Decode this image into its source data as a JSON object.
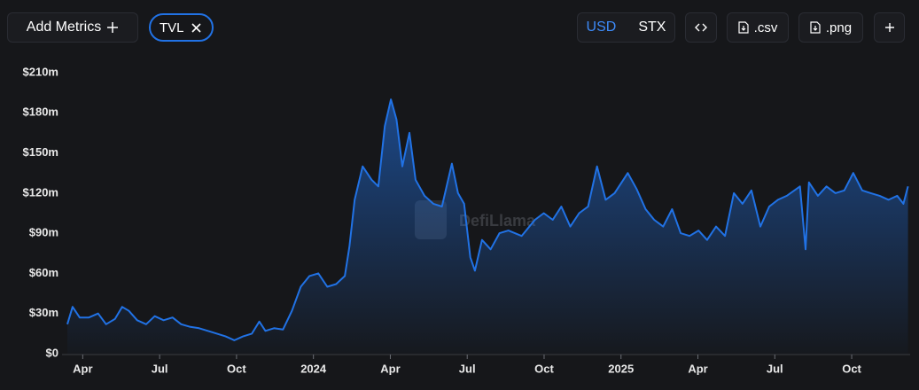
{
  "toolbar": {
    "add_metrics": "Add Metrics",
    "currency": [
      "USD",
      "STX"
    ],
    "export": [
      ".csv",
      ".png"
    ]
  },
  "watermark": "DefiLlama",
  "chart_data": {
    "type": "area",
    "x": [
      2023.2,
      2023.217,
      2023.24,
      2023.27,
      2023.3,
      2023.326,
      2023.355,
      2023.378,
      2023.4,
      2023.427,
      2023.456,
      2023.484,
      2023.513,
      2023.542,
      2023.57,
      2023.6,
      2023.628,
      2023.671,
      2023.714,
      2023.743,
      2023.772,
      2023.8,
      2023.824,
      2023.844,
      2023.872,
      2023.901,
      2023.93,
      2023.959,
      2023.987,
      2024.016,
      2024.045,
      2024.074,
      2024.102,
      2024.117,
      2024.134,
      2024.16,
      2024.189,
      2024.211,
      2024.232,
      2024.252,
      2024.27,
      2024.289,
      2024.312,
      2024.332,
      2024.361,
      2024.39,
      2024.418,
      2024.45,
      2024.47,
      2024.49,
      2024.51,
      2024.525,
      2024.548,
      2024.576,
      2024.605,
      2024.634,
      2024.677,
      2024.72,
      2024.749,
      2024.778,
      2024.806,
      2024.835,
      2024.864,
      2024.893,
      2024.922,
      2024.95,
      2024.979,
      2025.022,
      2025.051,
      2025.08,
      2025.108,
      2025.137,
      2025.166,
      2025.194,
      2025.223,
      2025.252,
      2025.28,
      2025.309,
      2025.338,
      2025.367,
      2025.395,
      2025.424,
      2025.453,
      2025.482,
      2025.51,
      2025.539,
      2025.582,
      2025.6,
      2025.611,
      2025.64,
      2025.668,
      2025.697,
      2025.726,
      2025.755,
      2025.784,
      2025.812,
      2025.841,
      2025.87,
      2025.898,
      2025.918,
      2025.933
    ],
    "series": [
      {
        "name": "TVL",
        "color": "#2172e5",
        "values": [
          22000000,
          35000000,
          27000000,
          27000000,
          30000000,
          22000000,
          26000000,
          35000000,
          32000000,
          25000000,
          22000000,
          28000000,
          25000000,
          27000000,
          22000000,
          20000000,
          19000000,
          16000000,
          13000000,
          10000000,
          13000000,
          15000000,
          24000000,
          17000000,
          19000000,
          18000000,
          32000000,
          50000000,
          58000000,
          60000000,
          50000000,
          52000000,
          58000000,
          80000000,
          115000000,
          140000000,
          130000000,
          125000000,
          170000000,
          190000000,
          175000000,
          140000000,
          165000000,
          130000000,
          118000000,
          112000000,
          110000000,
          142000000,
          120000000,
          112000000,
          72000000,
          62000000,
          85000000,
          78000000,
          90000000,
          92000000,
          88000000,
          100000000,
          105000000,
          100000000,
          110000000,
          95000000,
          105000000,
          110000000,
          140000000,
          115000000,
          120000000,
          135000000,
          123000000,
          108000000,
          100000000,
          95000000,
          108000000,
          90000000,
          88000000,
          92000000,
          85000000,
          95000000,
          88000000,
          120000000,
          112000000,
          122000000,
          95000000,
          110000000,
          115000000,
          118000000,
          125000000,
          78000000,
          128000000,
          118000000,
          125000000,
          120000000,
          122000000,
          135000000,
          122000000,
          120000000,
          118000000,
          115000000,
          118000000,
          112000000,
          125000000
        ]
      }
    ],
    "xlim": [
      2023.2,
      2025.94
    ],
    "xticks": [
      {
        "value": 2023.25,
        "label": "Apr"
      },
      {
        "value": 2023.5,
        "label": "Jul"
      },
      {
        "value": 2023.75,
        "label": "Oct"
      },
      2024,
      {
        "value": 2024.25,
        "label": "Apr"
      },
      {
        "value": 2024.5,
        "label": "Jul"
      },
      {
        "value": 2024.75,
        "label": "Oct"
      },
      2025,
      {
        "value": 2025.25,
        "label": "Apr"
      },
      {
        "value": 2025.5,
        "label": "Jul"
      },
      {
        "value": 2025.75,
        "label": "Oct"
      }
    ],
    "ylim": [
      0,
      210000000
    ],
    "yticks": [
      {
        "value": 0,
        "label": "$0"
      },
      {
        "value": 30000000,
        "label": "$30m"
      },
      {
        "value": 60000000,
        "label": "$60m"
      },
      {
        "value": 90000000,
        "label": "$90m"
      },
      {
        "value": 120000000,
        "label": "$120m"
      },
      {
        "value": 150000000,
        "label": "$150m"
      },
      {
        "value": 180000000,
        "label": "$180m"
      },
      {
        "value": 210000000,
        "label": "$210m"
      }
    ]
  }
}
